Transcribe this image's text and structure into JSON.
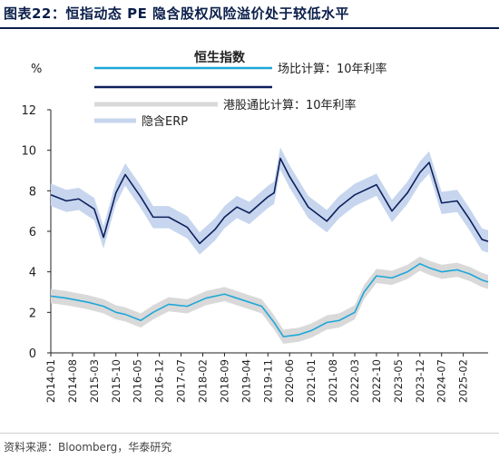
{
  "figure": {
    "title": "图表22：恒指动态 PE 隐含股权风险溢价处于较低水平",
    "source": "资料来源：Bloomberg，华泰研究"
  },
  "chart_data": {
    "type": "line",
    "title": "恒生指数",
    "ylabel": "%",
    "ylim": [
      0,
      12
    ],
    "yticks": [
      0,
      2,
      4,
      6,
      8,
      10,
      12
    ],
    "x_ticks": [
      "2014-01",
      "2014-08",
      "2015-03",
      "2015-10",
      "2016-05",
      "2016-12",
      "2017-07",
      "2018-02",
      "2018-09",
      "2019-04",
      "2019-11",
      "2020-06",
      "2021-01",
      "2021-08",
      "2022-03",
      "2022-10",
      "2023-05",
      "2023-12",
      "2024-07",
      "2025-02"
    ],
    "x_range": [
      "2014-01",
      "2025-10"
    ],
    "grid": false,
    "legend": [
      "场比计算：10年利率",
      "",
      "港股通比计算：10年利率",
      "隐含ERP"
    ],
    "series": [
      {
        "name": "场比计算：10年利率",
        "color": "#1ea7d9",
        "kind": "line",
        "points": [
          [
            "2014-01",
            2.8
          ],
          [
            "2014-06",
            2.7
          ],
          [
            "2015-01",
            2.5
          ],
          [
            "2015-06",
            2.3
          ],
          [
            "2015-10",
            2.0
          ],
          [
            "2016-01",
            1.9
          ],
          [
            "2016-06",
            1.6
          ],
          [
            "2016-10",
            2.0
          ],
          [
            "2017-03",
            2.4
          ],
          [
            "2017-09",
            2.3
          ],
          [
            "2018-03",
            2.7
          ],
          [
            "2018-09",
            2.9
          ],
          [
            "2019-03",
            2.6
          ],
          [
            "2019-09",
            2.3
          ],
          [
            "2020-01",
            1.5
          ],
          [
            "2020-04",
            0.8
          ],
          [
            "2020-09",
            0.9
          ],
          [
            "2021-01",
            1.1
          ],
          [
            "2021-06",
            1.5
          ],
          [
            "2021-10",
            1.6
          ],
          [
            "2022-03",
            2.0
          ],
          [
            "2022-06",
            3.0
          ],
          [
            "2022-10",
            3.8
          ],
          [
            "2023-03",
            3.7
          ],
          [
            "2023-08",
            4.0
          ],
          [
            "2023-12",
            4.4
          ],
          [
            "2024-03",
            4.2
          ],
          [
            "2024-07",
            4.0
          ],
          [
            "2024-12",
            4.1
          ],
          [
            "2025-04",
            3.9
          ],
          [
            "2025-08",
            3.6
          ],
          [
            "2025-10",
            3.5
          ]
        ]
      },
      {
        "name": "",
        "color": "#0d1f5c",
        "kind": "line",
        "points": [
          [
            "2014-01",
            7.8
          ],
          [
            "2014-06",
            7.5
          ],
          [
            "2014-10",
            7.6
          ],
          [
            "2015-03",
            7.1
          ],
          [
            "2015-06",
            5.7
          ],
          [
            "2015-10",
            7.9
          ],
          [
            "2016-01",
            8.8
          ],
          [
            "2016-06",
            7.7
          ],
          [
            "2016-10",
            6.7
          ],
          [
            "2017-03",
            6.7
          ],
          [
            "2017-09",
            6.2
          ],
          [
            "2018-01",
            5.4
          ],
          [
            "2018-06",
            6.1
          ],
          [
            "2018-09",
            6.7
          ],
          [
            "2019-01",
            7.2
          ],
          [
            "2019-05",
            6.9
          ],
          [
            "2019-11",
            7.7
          ],
          [
            "2020-01",
            7.9
          ],
          [
            "2020-03",
            9.6
          ],
          [
            "2020-06",
            8.7
          ],
          [
            "2020-12",
            7.2
          ],
          [
            "2021-06",
            6.5
          ],
          [
            "2021-10",
            7.2
          ],
          [
            "2022-03",
            7.8
          ],
          [
            "2022-10",
            8.3
          ],
          [
            "2023-03",
            7.0
          ],
          [
            "2023-08",
            7.9
          ],
          [
            "2023-12",
            8.9
          ],
          [
            "2024-03",
            9.4
          ],
          [
            "2024-07",
            7.4
          ],
          [
            "2024-12",
            7.5
          ],
          [
            "2025-04",
            6.6
          ],
          [
            "2025-08",
            5.6
          ],
          [
            "2025-10",
            5.5
          ]
        ]
      },
      {
        "name": "港股通比计算：10年利率",
        "color": "#d9d9d9",
        "kind": "band",
        "width": 0.35,
        "points": [
          [
            "2014-01",
            2.8
          ],
          [
            "2014-06",
            2.7
          ],
          [
            "2015-01",
            2.5
          ],
          [
            "2015-06",
            2.3
          ],
          [
            "2015-10",
            2.0
          ],
          [
            "2016-01",
            1.9
          ],
          [
            "2016-06",
            1.6
          ],
          [
            "2016-10",
            2.0
          ],
          [
            "2017-03",
            2.4
          ],
          [
            "2017-09",
            2.3
          ],
          [
            "2018-03",
            2.7
          ],
          [
            "2018-09",
            2.9
          ],
          [
            "2019-03",
            2.6
          ],
          [
            "2019-09",
            2.3
          ],
          [
            "2020-01",
            1.5
          ],
          [
            "2020-04",
            0.8
          ],
          [
            "2020-09",
            0.9
          ],
          [
            "2021-01",
            1.1
          ],
          [
            "2021-06",
            1.5
          ],
          [
            "2021-10",
            1.6
          ],
          [
            "2022-03",
            2.0
          ],
          [
            "2022-06",
            3.0
          ],
          [
            "2022-10",
            3.8
          ],
          [
            "2023-03",
            3.7
          ],
          [
            "2023-08",
            4.0
          ],
          [
            "2023-12",
            4.4
          ],
          [
            "2024-03",
            4.2
          ],
          [
            "2024-07",
            4.0
          ],
          [
            "2024-12",
            4.1
          ],
          [
            "2025-04",
            3.9
          ],
          [
            "2025-08",
            3.6
          ],
          [
            "2025-10",
            3.5
          ]
        ]
      },
      {
        "name": "隐含ERP",
        "color": "#c7d6ee",
        "kind": "band",
        "width": 0.55,
        "points": [
          [
            "2014-01",
            7.8
          ],
          [
            "2014-06",
            7.5
          ],
          [
            "2014-10",
            7.6
          ],
          [
            "2015-03",
            7.1
          ],
          [
            "2015-06",
            5.7
          ],
          [
            "2015-10",
            7.9
          ],
          [
            "2016-01",
            8.8
          ],
          [
            "2016-06",
            7.7
          ],
          [
            "2016-10",
            6.7
          ],
          [
            "2017-03",
            6.7
          ],
          [
            "2017-09",
            6.2
          ],
          [
            "2018-01",
            5.4
          ],
          [
            "2018-06",
            6.1
          ],
          [
            "2018-09",
            6.7
          ],
          [
            "2019-01",
            7.2
          ],
          [
            "2019-05",
            6.9
          ],
          [
            "2019-11",
            7.7
          ],
          [
            "2020-01",
            7.9
          ],
          [
            "2020-03",
            9.6
          ],
          [
            "2020-06",
            8.7
          ],
          [
            "2020-12",
            7.2
          ],
          [
            "2021-06",
            6.5
          ],
          [
            "2021-10",
            7.2
          ],
          [
            "2022-03",
            7.8
          ],
          [
            "2022-10",
            8.3
          ],
          [
            "2023-03",
            7.0
          ],
          [
            "2023-08",
            7.9
          ],
          [
            "2023-12",
            8.9
          ],
          [
            "2024-03",
            9.4
          ],
          [
            "2024-07",
            7.4
          ],
          [
            "2024-12",
            7.5
          ],
          [
            "2025-04",
            6.6
          ],
          [
            "2025-08",
            5.6
          ],
          [
            "2025-10",
            5.5
          ]
        ]
      }
    ]
  }
}
